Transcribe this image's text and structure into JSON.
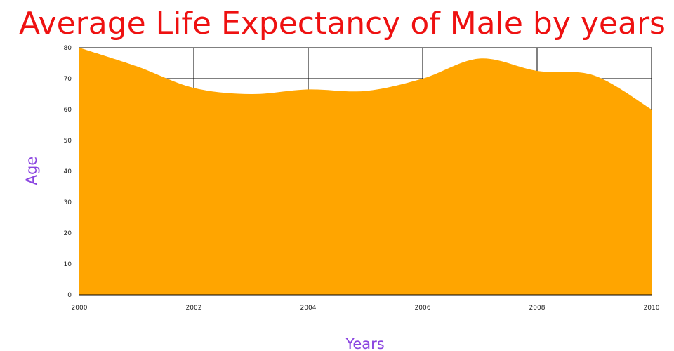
{
  "chart_data": {
    "type": "area",
    "title": "Average Life Expectancy of Male by years",
    "xlabel": "Years",
    "ylabel": "Age",
    "x": [
      2000,
      2001,
      2002,
      2003,
      2004,
      2005,
      2006,
      2007,
      2008,
      2009,
      2010
    ],
    "values": [
      80,
      74,
      67,
      65,
      66.5,
      66,
      70,
      76.5,
      72.5,
      71,
      60
    ],
    "xlim": [
      2000,
      2010
    ],
    "ylim": [
      0,
      80
    ],
    "x_ticks": [
      "2000",
      "2002",
      "2004",
      "2006",
      "2008",
      "2010"
    ],
    "y_ticks": [
      "0",
      "10",
      "20",
      "30",
      "40",
      "50",
      "60",
      "70",
      "80"
    ],
    "grid": true,
    "colors": {
      "fill": "#FFA500",
      "title": "#EE1111",
      "axis_label": "#8A44E0",
      "grid": "#000000"
    }
  }
}
